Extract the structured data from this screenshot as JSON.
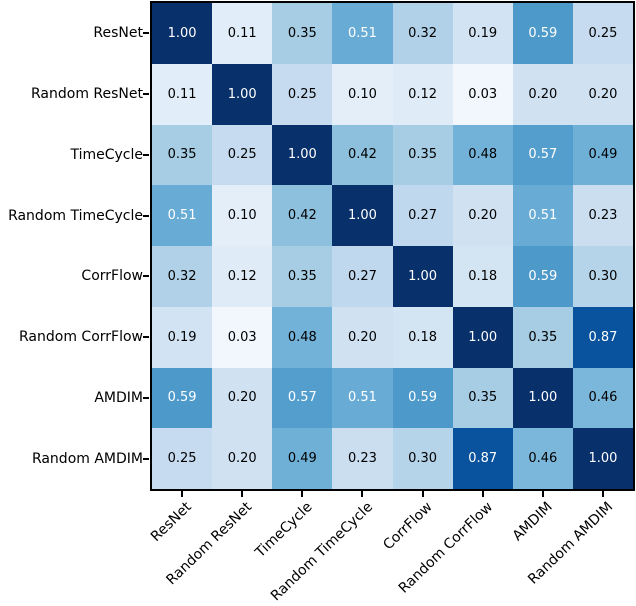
{
  "figure": {
    "background_color": "#ffffff",
    "frame_color": "#000000",
    "tick_color": "#000000",
    "label_color": "#000000"
  },
  "chart_data": {
    "type": "heatmap",
    "title": "",
    "xlabel": "",
    "ylabel": "",
    "categories": [
      "ResNet",
      "Random ResNet",
      "TimeCycle",
      "Random TimeCycle",
      "CorrFlow",
      "Random CorrFlow",
      "AMDIM",
      "Random AMDIM"
    ],
    "x_tick_labels": [
      "ResNet",
      "Random ResNet",
      "TimeCycle",
      "Random TimeCycle",
      "CorrFlow",
      "Random CorrFlow",
      "AMDIM",
      "Random AMDIM"
    ],
    "y_tick_labels": [
      "ResNet",
      "Random ResNet",
      "TimeCycle",
      "Random TimeCycle",
      "CorrFlow",
      "Random CorrFlow",
      "AMDIM",
      "Random AMDIM"
    ],
    "matrix": [
      [
        1.0,
        0.11,
        0.35,
        0.51,
        0.32,
        0.19,
        0.59,
        0.25
      ],
      [
        0.11,
        1.0,
        0.25,
        0.1,
        0.12,
        0.03,
        0.2,
        0.2
      ],
      [
        0.35,
        0.25,
        1.0,
        0.42,
        0.35,
        0.48,
        0.57,
        0.49
      ],
      [
        0.51,
        0.1,
        0.42,
        1.0,
        0.27,
        0.2,
        0.51,
        0.23
      ],
      [
        0.32,
        0.12,
        0.35,
        0.27,
        1.0,
        0.18,
        0.59,
        0.3
      ],
      [
        0.19,
        0.03,
        0.48,
        0.2,
        0.18,
        1.0,
        0.35,
        0.87
      ],
      [
        0.59,
        0.2,
        0.57,
        0.51,
        0.59,
        0.35,
        1.0,
        0.46
      ],
      [
        0.25,
        0.2,
        0.49,
        0.23,
        0.3,
        0.87,
        0.46,
        1.0
      ]
    ],
    "value_format_decimals": 2,
    "vmin": 0.0,
    "vmax": 1.0,
    "colormap": {
      "name": "Blues",
      "anchor_positions": [
        0,
        0.125,
        0.25,
        0.375,
        0.5,
        0.625,
        0.75,
        0.875,
        1.0
      ],
      "anchor_colors": [
        "#f7fbff",
        "#deebf7",
        "#c6dbef",
        "#9ecae1",
        "#6baed6",
        "#4292c6",
        "#2171b5",
        "#08519c",
        "#08306b"
      ]
    },
    "annotation_colors": {
      "on_light": "#000000",
      "on_dark": "#ffffff",
      "white_text_threshold": 0.5
    },
    "x_tick_rotation_deg": 45,
    "legend": "none",
    "grid": false,
    "colorbar": false
  }
}
